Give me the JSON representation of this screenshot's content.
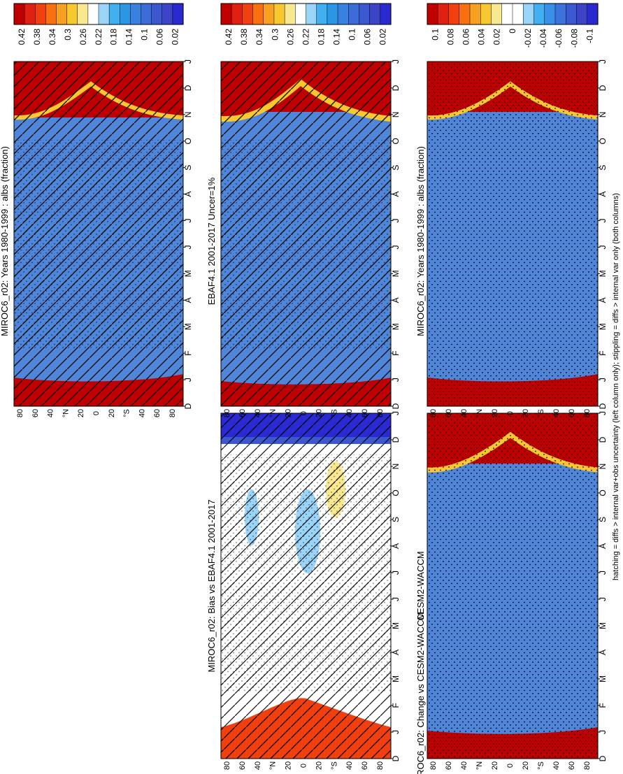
{
  "footer": "hatching = diffs > internal var+obs uncertainty (left column only); stippling = diffs > internal var only (both columns)",
  "months": [
    "D",
    "J",
    "F",
    "M",
    "A",
    "M",
    "J",
    "J",
    "A",
    "S",
    "O",
    "N",
    "D",
    "J"
  ],
  "lat_ticks": [
    "80",
    "60",
    "40",
    "°N",
    "20",
    "0",
    "20",
    "°S",
    "40",
    "60",
    "80"
  ],
  "colorbar_abs": {
    "labels": [
      "0.42",
      "0.38",
      "0.34",
      "0.3",
      "0.26",
      "0.22",
      "0.18",
      "0.14",
      "0.1",
      "0.06",
      "0.02"
    ],
    "colors": [
      "#c00000",
      "#e02010",
      "#f04010",
      "#f87010",
      "#f8a020",
      "#f8c830",
      "#f8e890",
      "#ffffff",
      "#9ad4f8",
      "#40b0f0",
      "#2a96e4",
      "#3a82e0",
      "#3c6cd8",
      "#3c58d0",
      "#3c44c8",
      "#2a2ad0"
    ]
  },
  "colorbar_diff": {
    "labels": [
      "0.1",
      "0.08",
      "0.06",
      "0.04",
      "0.02",
      "0",
      "-0.02",
      "-0.04",
      "-0.06",
      "-0.08",
      "-0.1"
    ],
    "colors": [
      "#c00000",
      "#e02010",
      "#f04010",
      "#f87010",
      "#f8a020",
      "#f8c830",
      "#f8e890",
      "#ffffff",
      "#ffffff",
      "#9ad4f8",
      "#40b0f0",
      "#3a90e8",
      "#3c72dc",
      "#3c58d0",
      "#3c44c8",
      "#2a2ad0"
    ]
  },
  "chart_data": [
    {
      "type": "heatmap",
      "title": "MIROC6_r02: Years 1980-1999 : albs (fraction)",
      "x_axis": "month (D-J)",
      "y_axis": "latitude",
      "colorbar": "abs",
      "variable": "albs",
      "units": "fraction",
      "data": {
        "lat": [
          90,
          70,
          60,
          40,
          0,
          -40,
          -60,
          -70,
          -90
        ],
        "month": [
          "DJF",
          "MAM",
          "JJA",
          "SON"
        ],
        "values": [
          [
            0.45,
            0.45,
            0.45,
            0.45
          ],
          [
            0.45,
            0.4,
            0.16,
            0.42
          ],
          [
            0.42,
            0.22,
            0.12,
            0.2
          ],
          [
            0.16,
            0.12,
            0.12,
            0.13
          ],
          [
            0.12,
            0.12,
            0.12,
            0.12
          ],
          [
            0.08,
            0.09,
            0.1,
            0.09
          ],
          [
            0.08,
            0.1,
            0.13,
            0.12
          ],
          [
            0.45,
            0.45,
            0.45,
            0.45
          ],
          [
            0.45,
            0.45,
            0.45,
            0.45
          ]
        ]
      },
      "hatching": true,
      "stippling": true
    },
    {
      "type": "heatmap",
      "title": "MIROC6_r02: Years 1980-1999 : albs (fraction)",
      "x_axis": "month (D-J)",
      "y_axis": "latitude",
      "colorbar": "abs",
      "variable": "albs",
      "units": "fraction",
      "data": {
        "lat": [
          90,
          70,
          60,
          40,
          0,
          -40,
          -60,
          -70,
          -90
        ],
        "month": [
          "DJF",
          "MAM",
          "JJA",
          "SON"
        ],
        "values": [
          [
            0.45,
            0.45,
            0.45,
            0.45
          ],
          [
            0.45,
            0.4,
            0.16,
            0.42
          ],
          [
            0.42,
            0.22,
            0.12,
            0.2
          ],
          [
            0.16,
            0.12,
            0.12,
            0.13
          ],
          [
            0.12,
            0.12,
            0.12,
            0.12
          ],
          [
            0.08,
            0.09,
            0.1,
            0.09
          ],
          [
            0.08,
            0.1,
            0.13,
            0.12
          ],
          [
            0.45,
            0.45,
            0.45,
            0.45
          ],
          [
            0.45,
            0.45,
            0.45,
            0.45
          ]
        ]
      },
      "hatching": false,
      "stippling": true
    },
    {
      "type": "heatmap",
      "title": "EBAF4.1 2001-2017 Uncer=1%",
      "x_axis": "month (D-J)",
      "y_axis": "latitude",
      "colorbar": "abs",
      "variable": "albs",
      "units": "fraction",
      "data": {
        "lat": [
          90,
          70,
          60,
          40,
          0,
          -40,
          -60,
          -70,
          -90
        ],
        "month": [
          "DJF",
          "MAM",
          "JJA",
          "SON"
        ],
        "values": [
          [
            0.45,
            0.45,
            0.45,
            0.45
          ],
          [
            0.42,
            0.36,
            0.2,
            0.36
          ],
          [
            0.36,
            0.2,
            0.14,
            0.18
          ],
          [
            0.15,
            0.12,
            0.12,
            0.12
          ],
          [
            0.12,
            0.11,
            0.12,
            0.12
          ],
          [
            0.08,
            0.09,
            0.09,
            0.09
          ],
          [
            0.1,
            0.12,
            0.13,
            0.12
          ],
          [
            0.45,
            0.45,
            0.45,
            0.45
          ],
          [
            0.45,
            0.45,
            0.45,
            0.45
          ]
        ]
      },
      "hatching": true,
      "stippling": true
    },
    {
      "type": "heatmap",
      "title": "CESM2-WACCM",
      "x_axis": "month (D-J)",
      "y_axis": "latitude",
      "colorbar": "abs",
      "variable": "albs",
      "units": "fraction",
      "data": {
        "lat": [
          90,
          70,
          60,
          40,
          0,
          -40,
          -60,
          -70,
          -90
        ],
        "month": [
          "DJF",
          "MAM",
          "JJA",
          "SON"
        ],
        "values": [
          [
            0.45,
            0.45,
            0.45,
            0.45
          ],
          [
            0.45,
            0.4,
            0.26,
            0.4
          ],
          [
            0.4,
            0.22,
            0.14,
            0.22
          ],
          [
            0.16,
            0.12,
            0.12,
            0.13
          ],
          [
            0.12,
            0.12,
            0.12,
            0.12
          ],
          [
            0.08,
            0.09,
            0.1,
            0.09
          ],
          [
            0.08,
            0.1,
            0.13,
            0.12
          ],
          [
            0.45,
            0.45,
            0.45,
            0.45
          ],
          [
            0.45,
            0.45,
            0.45,
            0.45
          ]
        ]
      },
      "hatching": false,
      "stippling": true
    },
    {
      "type": "heatmap",
      "title": "MIROC6_r02: Bias vs EBAF4.1 2001-2017",
      "x_axis": "month (D-J)",
      "y_axis": "latitude",
      "colorbar": "diff",
      "variable": "albs",
      "units": "fraction",
      "data": {
        "lat": [
          90,
          70,
          60,
          40,
          0,
          -40,
          -60,
          -70,
          -90
        ],
        "month": [
          "DJF",
          "MAM",
          "JJA",
          "SON"
        ],
        "values": [
          [
            0.1,
            0.08,
            0.06,
            0.08
          ],
          [
            0.08,
            0.04,
            -0.02,
            0.06
          ],
          [
            0.04,
            0.02,
            0.0,
            0.02
          ],
          [
            0.0,
            0.0,
            0.0,
            -0.01
          ],
          [
            -0.01,
            -0.02,
            0.0,
            0.0
          ],
          [
            0.0,
            0.0,
            0.02,
            0.0
          ],
          [
            -0.02,
            -0.04,
            -0.06,
            -0.08
          ],
          [
            -0.1,
            -0.1,
            -0.1,
            -0.1
          ],
          [
            -0.1,
            -0.1,
            -0.1,
            -0.1
          ]
        ]
      },
      "hatching": true,
      "stippling": true
    },
    {
      "type": "heatmap",
      "title": "MIROC6_r02: Change vs CESM2-WACCM",
      "x_axis": "month (D-J)",
      "y_axis": "latitude",
      "colorbar": "diff",
      "variable": "albs",
      "units": "fraction",
      "data": {
        "lat": [
          90,
          70,
          60,
          40,
          0,
          -40,
          -60,
          -70,
          -90
        ],
        "month": [
          "DJF",
          "MAM",
          "JJA",
          "SON"
        ],
        "values": [
          [
            0.06,
            0.04,
            0.02,
            0.08
          ],
          [
            0.08,
            0.06,
            -0.08,
            0.06
          ],
          [
            0.04,
            0.02,
            -0.04,
            -0.02
          ],
          [
            0.0,
            0.0,
            -0.02,
            0.0
          ],
          [
            0.0,
            0.0,
            0.0,
            0.0
          ],
          [
            0.0,
            0.0,
            0.02,
            0.0
          ],
          [
            -0.08,
            -0.1,
            -0.1,
            -0.1
          ],
          [
            -0.1,
            -0.1,
            -0.1,
            -0.1
          ],
          [
            -0.1,
            -0.1,
            -0.1,
            -0.1
          ]
        ]
      },
      "hatching": false,
      "stippling": true
    }
  ]
}
